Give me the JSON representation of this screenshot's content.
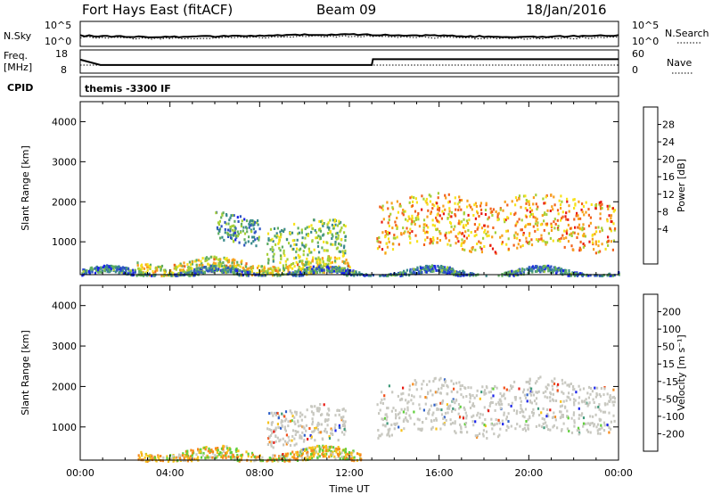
{
  "header": {
    "title_left": "Fort Hays East (fitACF)",
    "title_center": "Beam 09",
    "title_right": "18/Jan/2016"
  },
  "nsky_panel": {
    "left_label": "N.Sky",
    "left_ticks": [
      "10^5",
      "10^0"
    ],
    "right_ticks": [
      "10^5",
      "10^0"
    ],
    "right_label": "N.Search"
  },
  "freq_panel": {
    "label_line1": "Freq.",
    "label_line2": "[MHz]",
    "left_ticks": [
      "18",
      "8"
    ],
    "right_ticks": [
      "60",
      "0"
    ],
    "right_label": "Nave",
    "freq_steps": [
      {
        "t": 0.0,
        "value": 13.8
      },
      {
        "t": 0.9,
        "value": 11.5
      },
      {
        "t": 13.0,
        "value": 11.5
      },
      {
        "t": 13.05,
        "value": 14.0
      },
      {
        "t": 24.0,
        "value": 14.0
      }
    ]
  },
  "cpid_panel": {
    "label": "CPID",
    "text": "themis -3300 IF"
  },
  "chart_data": [
    {
      "type": "heatmap",
      "name": "power",
      "ylabel": "Slant Range [km]",
      "xlabel": "",
      "xlim": [
        0,
        24
      ],
      "ylim": [
        180,
        4500
      ],
      "yticks": [
        "1000",
        "2000",
        "3000",
        "4000"
      ],
      "colorbar_label": "Power [dB]",
      "colorbar_ticks": [
        "4",
        "8",
        "12",
        "16",
        "20",
        "24",
        "28"
      ],
      "colorbar_colors": [
        "#1a23e8",
        "#2f55c2",
        "#3a8a8c",
        "#5fae62",
        "#a6cf37",
        "#f7e21a",
        "#f7a01c",
        "#f2611a",
        "#e81a12"
      ],
      "regions": [
        {
          "t0": 13.2,
          "t1": 23.8,
          "r_mid": 1500,
          "r_width": 650,
          "level": 22
        },
        {
          "t0": 6.0,
          "t1": 8.0,
          "r_mid": 1300,
          "r_width": 350,
          "level": 10
        },
        {
          "t0": 8.3,
          "t1": 11.8,
          "r_mid": 1050,
          "r_width": 450,
          "level": 14
        },
        {
          "t0": 2.5,
          "t1": 12.0,
          "r_mid": 350,
          "r_width": 200,
          "level": 18
        },
        {
          "t0": 0.0,
          "t1": 24.0,
          "r_mid": 240,
          "r_width": 80,
          "level": 8
        }
      ]
    },
    {
      "type": "heatmap",
      "name": "velocity",
      "ylabel": "Slant Range [km]",
      "xlabel": "Time UT",
      "xlim": [
        0,
        24
      ],
      "ylim": [
        180,
        4500
      ],
      "xticks": [
        "00:00",
        "04:00",
        "08:00",
        "12:00",
        "16:00",
        "20:00",
        "00:00"
      ],
      "yticks": [
        "1000",
        "2000",
        "3000",
        "4000"
      ],
      "colorbar_label": "Velocity [m s⁻¹]",
      "colorbar_ticks": [
        "200",
        "100",
        "50",
        "15",
        "-15",
        "-50",
        "-100",
        "-200"
      ],
      "colorbar_colors": [
        "#1a23e8",
        "#2f60c8",
        "#3f9a7a",
        "#5fcf3a",
        "#c8c8c0",
        "#f7c21a",
        "#f78a1a",
        "#f2501a",
        "#e81a12"
      ],
      "regions": [
        {
          "t0": 13.2,
          "t1": 23.8,
          "r_mid": 1500,
          "r_width": 650,
          "level": 0
        },
        {
          "t0": 8.3,
          "t1": 11.8,
          "r_mid": 1050,
          "r_width": 450,
          "level": 0
        },
        {
          "t0": 2.5,
          "t1": 12.5,
          "r_mid": 300,
          "r_width": 150,
          "level": -30
        }
      ]
    }
  ]
}
